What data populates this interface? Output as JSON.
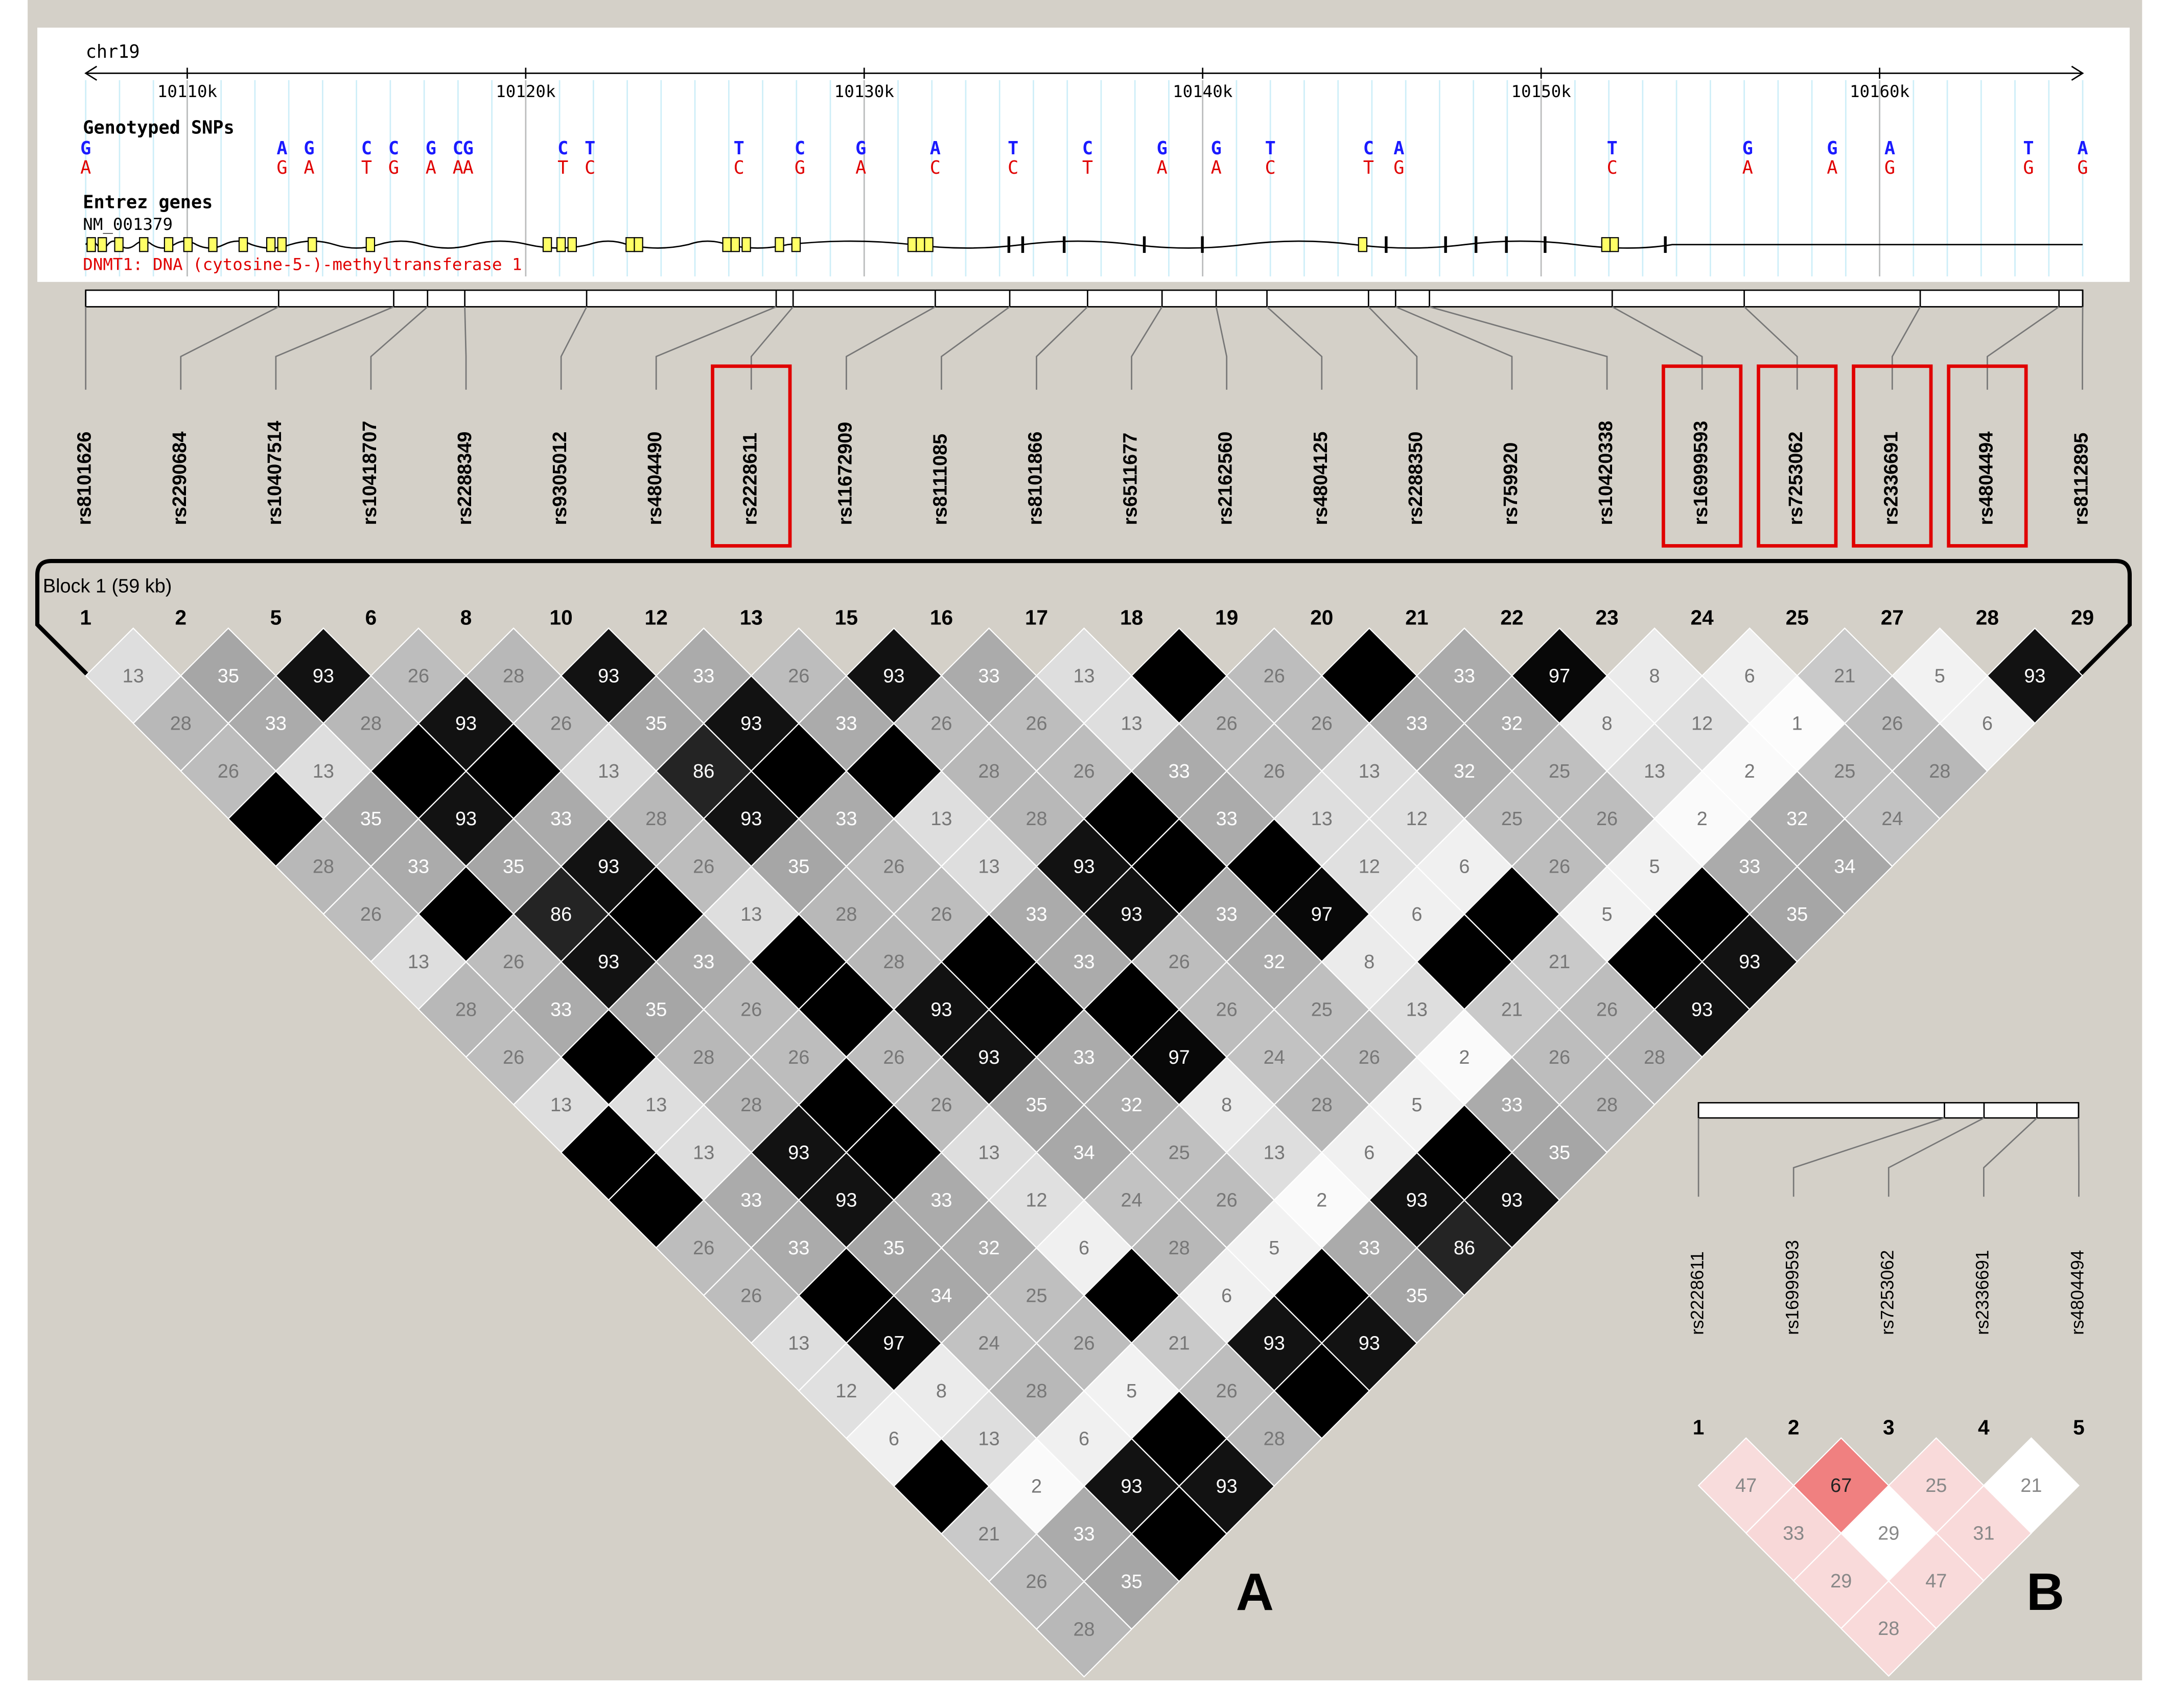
{
  "browser": {
    "chrom": "chr19",
    "xlim": [
      10107.0,
      10166.0
    ],
    "xticks": [
      {
        "value": 10110,
        "label": "10110k"
      },
      {
        "value": 10120,
        "label": "10120k"
      },
      {
        "value": 10130,
        "label": "10130k"
      },
      {
        "value": 10140,
        "label": "10140k"
      },
      {
        "value": 10150,
        "label": "10150k"
      },
      {
        "value": 10160,
        "label": "10160k"
      }
    ],
    "snps_title": "Genotyped SNPs",
    "snps": [
      {
        "pos": 10107.0,
        "a1": "G",
        "a2": "A"
      },
      {
        "pos": 10112.8,
        "a1": "A",
        "a2": "G"
      },
      {
        "pos": 10113.6,
        "a1": "G",
        "a2": "A"
      },
      {
        "pos": 10115.3,
        "a1": "C",
        "a2": "T"
      },
      {
        "pos": 10116.1,
        "a1": "C",
        "a2": "G"
      },
      {
        "pos": 10117.2,
        "a1": "G",
        "a2": "A"
      },
      {
        "pos": 10118.0,
        "a1": "C",
        "a2": "A"
      },
      {
        "pos": 10118.3,
        "a1": "G",
        "a2": "A"
      },
      {
        "pos": 10121.1,
        "a1": "C",
        "a2": "T"
      },
      {
        "pos": 10121.9,
        "a1": "T",
        "a2": "C"
      },
      {
        "pos": 10126.3,
        "a1": "T",
        "a2": "C"
      },
      {
        "pos": 10128.1,
        "a1": "C",
        "a2": "G"
      },
      {
        "pos": 10129.9,
        "a1": "G",
        "a2": "A"
      },
      {
        "pos": 10132.1,
        "a1": "A",
        "a2": "C"
      },
      {
        "pos": 10134.4,
        "a1": "T",
        "a2": "C"
      },
      {
        "pos": 10136.6,
        "a1": "C",
        "a2": "T"
      },
      {
        "pos": 10138.8,
        "a1": "G",
        "a2": "A"
      },
      {
        "pos": 10140.4,
        "a1": "G",
        "a2": "A"
      },
      {
        "pos": 10142.0,
        "a1": "T",
        "a2": "C"
      },
      {
        "pos": 10144.9,
        "a1": "C",
        "a2": "T"
      },
      {
        "pos": 10145.8,
        "a1": "A",
        "a2": "G"
      },
      {
        "pos": 10152.1,
        "a1": "T",
        "a2": "C"
      },
      {
        "pos": 10156.1,
        "a1": "G",
        "a2": "A"
      },
      {
        "pos": 10158.6,
        "a1": "G",
        "a2": "A"
      },
      {
        "pos": 10160.3,
        "a1": "A",
        "a2": "G"
      },
      {
        "pos": 10164.4,
        "a1": "T",
        "a2": "G"
      },
      {
        "pos": 10166.0,
        "a1": "A",
        "a2": "G"
      }
    ],
    "genes_title": "Entrez genes",
    "transcript": "NM_001379",
    "gene": "DNMT1: DNA (cytosine-5-)-methyltransferase 1"
  },
  "panel_a": {
    "letter": "A",
    "block": "Block 1 (59 kb)",
    "snps": [
      "rs8101626",
      "rs2290684",
      "rs10407514",
      "rs10418707",
      "rs2288349",
      "rs9305012",
      "rs4804490",
      "rs2228611",
      "rs11672909",
      "rs8111085",
      "rs8101866",
      "rs6511677",
      "rs2162560",
      "rs4804125",
      "rs2288350",
      "rs759920",
      "rs10420338",
      "rs16999593",
      "rs7253062",
      "rs2336691",
      "rs4804494",
      "rs8112895"
    ],
    "numbers": [
      1,
      2,
      5,
      6,
      8,
      10,
      12,
      13,
      15,
      16,
      17,
      18,
      19,
      20,
      21,
      22,
      23,
      24,
      25,
      27,
      28,
      29
    ],
    "positions": [
      10107.0,
      10112.7,
      10116.1,
      10117.1,
      10118.2,
      10121.8,
      10127.4,
      10127.9,
      10132.1,
      10134.3,
      10136.6,
      10138.8,
      10140.4,
      10141.9,
      10144.9,
      10145.7,
      10146.7,
      10152.1,
      10156.0,
      10161.2,
      10165.3,
      10166.0
    ],
    "highlighted": [
      7,
      17,
      18,
      19,
      20
    ],
    "ld": [
      [
        13,
        35,
        93,
        26,
        28,
        93,
        33,
        26,
        93,
        33,
        13,
        100,
        26,
        100,
        33,
        97,
        8,
        6,
        21,
        5,
        93
      ],
      [
        28,
        33,
        28,
        93,
        26,
        35,
        93,
        33,
        26,
        26,
        13,
        26,
        26,
        33,
        32,
        8,
        12,
        1,
        26,
        6
      ],
      [
        26,
        13,
        100,
        100,
        13,
        86,
        100,
        100,
        28,
        26,
        33,
        26,
        13,
        32,
        25,
        13,
        2,
        25,
        28
      ],
      [
        100,
        35,
        93,
        33,
        28,
        93,
        33,
        13,
        28,
        100,
        33,
        13,
        12,
        25,
        26,
        2,
        32,
        24
      ],
      [
        28,
        33,
        35,
        93,
        26,
        35,
        26,
        13,
        93,
        100,
        100,
        12,
        6,
        26,
        5,
        33,
        34
      ],
      [
        26,
        100,
        86,
        100,
        13,
        28,
        26,
        33,
        93,
        33,
        97,
        6,
        100,
        5,
        100,
        35
      ],
      [
        13,
        26,
        93,
        33,
        100,
        28,
        100,
        33,
        26,
        32,
        8,
        100,
        21,
        100,
        93
      ],
      [
        28,
        33,
        35,
        26,
        100,
        93,
        100,
        100,
        26,
        25,
        13,
        21,
        26,
        93
      ],
      [
        26,
        100,
        28,
        26,
        26,
        93,
        33,
        97,
        24,
        26,
        2,
        26,
        28
      ],
      [
        13,
        13,
        28,
        100,
        26,
        35,
        32,
        8,
        28,
        5,
        33,
        28
      ],
      [
        100,
        13,
        93,
        100,
        13,
        34,
        25,
        13,
        6,
        100,
        35
      ],
      [
        100,
        33,
        93,
        33,
        12,
        24,
        26,
        2,
        93,
        93
      ],
      [
        26,
        33,
        35,
        32,
        6,
        28,
        5,
        33,
        86
      ],
      [
        26,
        100,
        34,
        25,
        100,
        6,
        100,
        35
      ],
      [
        13,
        97,
        24,
        26,
        21,
        93,
        93
      ],
      [
        12,
        8,
        28,
        5,
        26,
        100
      ],
      [
        6,
        13,
        6,
        100,
        28
      ],
      [
        100,
        2,
        93,
        93
      ],
      [
        21,
        33,
        100
      ],
      [
        26,
        35
      ],
      [
        28
      ]
    ]
  },
  "panel_b": {
    "letter": "B",
    "snps": [
      "rs2228611",
      "rs16999593",
      "rs7253062",
      "rs2336691",
      "rs4804494"
    ],
    "numbers": [
      1,
      2,
      3,
      4,
      5
    ],
    "positions": [
      10127.9,
      10152.1,
      10156.0,
      10161.2,
      10165.3
    ],
    "ld": [
      [
        47,
        67,
        25,
        21
      ],
      [
        33,
        29,
        31
      ],
      [
        29,
        47
      ],
      [
        28
      ]
    ],
    "colors": [
      [
        "#f8dcdc",
        "#f08080",
        "#f9dada",
        "#ffffff"
      ],
      [
        "#f8d8d8",
        "#ffffff",
        "#f9dada"
      ],
      [
        "#f9dada",
        "#f9dada"
      ],
      [
        "#f9dada"
      ]
    ]
  }
}
